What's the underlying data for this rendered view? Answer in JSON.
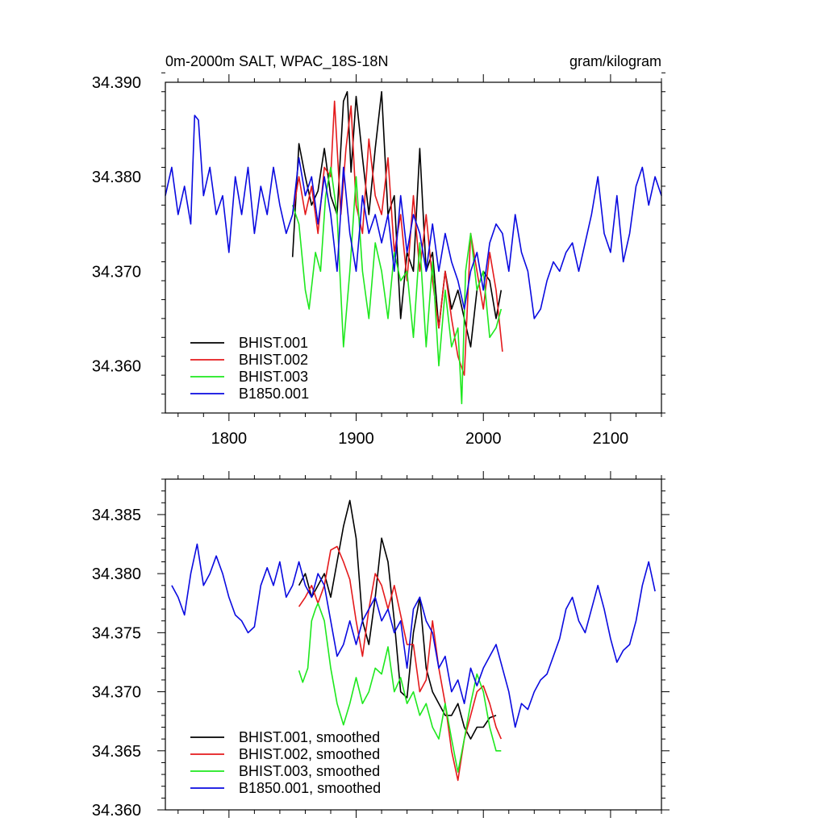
{
  "chart_data": [
    {
      "type": "line",
      "title": "0m-2000m SALT, WPAC_18S-18N",
      "units": "gram/kilogram",
      "xlim": [
        1750,
        2140
      ],
      "ylim": [
        34.355,
        34.39
      ],
      "xticks": [
        1800,
        1900,
        2000,
        2100
      ],
      "xtick_labels": [
        "1800",
        "1900",
        "2000",
        "2100"
      ],
      "yticks": [
        34.36,
        34.37,
        34.38,
        34.39
      ],
      "ytick_labels": [
        "34.360",
        "34.370",
        "34.380",
        "34.390"
      ],
      "legend": [
        "BHIST.001",
        "BHIST.002",
        "BHIST.003",
        "B1850.001"
      ],
      "legend_position": "bottom-left",
      "series": [
        {
          "name": "BHIST.001",
          "color": "#000000",
          "x": [
            1850,
            1855,
            1860,
            1865,
            1870,
            1875,
            1880,
            1885,
            1890,
            1893,
            1896,
            1900,
            1905,
            1910,
            1915,
            1920,
            1925,
            1930,
            1935,
            1940,
            1945,
            1950,
            1955,
            1960,
            1965,
            1970,
            1975,
            1980,
            1985,
            1990,
            1995,
            2000,
            2005,
            2010,
            2014
          ],
          "y": [
            34.3715,
            34.3835,
            34.38,
            34.377,
            34.3785,
            34.383,
            34.378,
            34.376,
            34.388,
            34.389,
            34.3805,
            34.3885,
            34.382,
            34.376,
            34.383,
            34.389,
            34.376,
            34.378,
            34.365,
            34.372,
            34.37,
            34.383,
            34.37,
            34.372,
            34.364,
            34.37,
            34.366,
            34.368,
            34.365,
            34.362,
            34.368,
            34.37,
            34.369,
            34.365,
            34.368
          ]
        },
        {
          "name": "BHIST.002",
          "color": "#e41a1c",
          "x": [
            1850,
            1855,
            1860,
            1865,
            1870,
            1875,
            1880,
            1883,
            1888,
            1892,
            1896,
            1900,
            1905,
            1910,
            1915,
            1920,
            1925,
            1930,
            1935,
            1940,
            1945,
            1950,
            1955,
            1960,
            1965,
            1970,
            1975,
            1980,
            1985,
            1990,
            1995,
            2000,
            2005,
            2010,
            2015
          ],
          "y": [
            34.376,
            34.38,
            34.376,
            34.379,
            34.374,
            34.381,
            34.38,
            34.388,
            34.376,
            34.383,
            34.3875,
            34.377,
            34.374,
            34.384,
            34.378,
            34.376,
            34.382,
            34.372,
            34.376,
            34.369,
            34.378,
            34.37,
            34.376,
            34.369,
            34.364,
            34.37,
            34.365,
            34.361,
            34.359,
            34.374,
            34.37,
            34.366,
            34.372,
            34.368,
            34.3615
          ]
        },
        {
          "name": "BHIST.003",
          "color": "#1ee81e",
          "x": [
            1850,
            1855,
            1860,
            1863,
            1868,
            1872,
            1876,
            1880,
            1885,
            1890,
            1895,
            1900,
            1905,
            1910,
            1915,
            1920,
            1925,
            1930,
            1935,
            1940,
            1945,
            1950,
            1955,
            1960,
            1965,
            1970,
            1975,
            1980,
            1983,
            1986,
            1990,
            1995,
            2000,
            2005,
            2010,
            2014
          ],
          "y": [
            34.377,
            34.375,
            34.368,
            34.366,
            34.372,
            34.37,
            34.378,
            34.381,
            34.376,
            34.362,
            34.37,
            34.38,
            34.37,
            34.365,
            34.373,
            34.37,
            34.365,
            34.372,
            34.369,
            34.37,
            34.363,
            34.373,
            34.362,
            34.371,
            34.36,
            34.368,
            34.362,
            34.364,
            34.356,
            34.37,
            34.374,
            34.368,
            34.37,
            34.363,
            34.364,
            34.366
          ]
        },
        {
          "name": "B1850.001",
          "color": "#0a0ae0",
          "x": [
            1750,
            1755,
            1760,
            1765,
            1770,
            1773,
            1776,
            1780,
            1785,
            1790,
            1795,
            1800,
            1805,
            1810,
            1815,
            1820,
            1825,
            1830,
            1835,
            1840,
            1845,
            1850,
            1855,
            1860,
            1865,
            1870,
            1875,
            1880,
            1885,
            1890,
            1895,
            1900,
            1905,
            1910,
            1915,
            1920,
            1925,
            1930,
            1935,
            1940,
            1945,
            1950,
            1955,
            1960,
            1965,
            1970,
            1975,
            1980,
            1985,
            1990,
            1995,
            2000,
            2005,
            2010,
            2015,
            2020,
            2025,
            2030,
            2035,
            2040,
            2045,
            2050,
            2055,
            2060,
            2065,
            2070,
            2075,
            2080,
            2085,
            2090,
            2095,
            2100,
            2105,
            2110,
            2115,
            2120,
            2125,
            2130,
            2135,
            2140
          ],
          "y": [
            34.378,
            34.381,
            34.376,
            34.379,
            34.375,
            34.3865,
            34.386,
            34.378,
            34.381,
            34.376,
            34.378,
            34.372,
            34.38,
            34.376,
            34.381,
            34.374,
            34.379,
            34.376,
            34.381,
            34.377,
            34.374,
            34.376,
            34.382,
            34.378,
            34.38,
            34.375,
            34.38,
            34.376,
            34.37,
            34.381,
            34.374,
            34.37,
            34.378,
            34.374,
            34.376,
            34.373,
            34.376,
            34.37,
            34.378,
            34.372,
            34.376,
            34.374,
            34.37,
            34.375,
            34.37,
            34.374,
            34.371,
            34.369,
            34.366,
            34.37,
            34.372,
            34.368,
            34.373,
            34.375,
            34.374,
            34.37,
            34.376,
            34.372,
            34.37,
            34.365,
            34.366,
            34.369,
            34.371,
            34.37,
            34.372,
            34.373,
            34.37,
            34.373,
            34.376,
            34.38,
            34.374,
            34.372,
            34.378,
            34.371,
            34.374,
            34.379,
            34.381,
            34.377,
            34.38,
            34.378
          ]
        }
      ]
    },
    {
      "type": "line",
      "title": "",
      "xlim": [
        1750,
        2140
      ],
      "ylim": [
        34.36,
        34.388
      ],
      "xticks": [
        1800,
        1900,
        2000,
        2100
      ],
      "xtick_labels": [],
      "yticks": [
        34.36,
        34.365,
        34.37,
        34.375,
        34.38,
        34.385
      ],
      "ytick_labels": [
        "34.360",
        "34.365",
        "34.370",
        "34.375",
        "34.380",
        "34.385"
      ],
      "legend": [
        "BHIST.001, smoothed",
        "BHIST.002, smoothed",
        "BHIST.003, smoothed",
        "B1850.001, smoothed"
      ],
      "legend_position": "bottom-left",
      "series": [
        {
          "name": "BHIST.001, smoothed",
          "color": "#000000",
          "x": [
            1855,
            1860,
            1865,
            1870,
            1875,
            1880,
            1885,
            1890,
            1895,
            1900,
            1905,
            1910,
            1915,
            1920,
            1925,
            1930,
            1935,
            1940,
            1945,
            1950,
            1955,
            1960,
            1965,
            1970,
            1975,
            1980,
            1985,
            1990,
            1995,
            2000,
            2005,
            2010
          ],
          "y": [
            34.379,
            34.38,
            34.378,
            34.379,
            34.38,
            34.378,
            34.381,
            34.384,
            34.3862,
            34.383,
            34.376,
            34.374,
            34.378,
            34.383,
            34.381,
            34.376,
            34.37,
            34.3695,
            34.375,
            34.378,
            34.372,
            34.37,
            34.369,
            34.368,
            34.368,
            34.369,
            34.367,
            34.366,
            34.367,
            34.367,
            34.3678,
            34.368
          ]
        },
        {
          "name": "BHIST.002, smoothed",
          "color": "#e41a1c",
          "x": [
            1855,
            1860,
            1865,
            1870,
            1875,
            1880,
            1885,
            1890,
            1895,
            1900,
            1905,
            1910,
            1915,
            1920,
            1925,
            1930,
            1935,
            1940,
            1945,
            1950,
            1955,
            1960,
            1965,
            1970,
            1975,
            1980,
            1985,
            1990,
            1995,
            2000,
            2005,
            2010,
            2014
          ],
          "y": [
            34.3772,
            34.378,
            34.379,
            34.3775,
            34.379,
            34.382,
            34.3823,
            34.381,
            34.3795,
            34.376,
            34.373,
            34.377,
            34.38,
            34.379,
            34.377,
            34.379,
            34.3765,
            34.374,
            34.374,
            34.37,
            34.371,
            34.376,
            34.372,
            34.369,
            34.365,
            34.3625,
            34.366,
            34.368,
            34.37,
            34.3705,
            34.369,
            34.367,
            34.366
          ]
        },
        {
          "name": "BHIST.003, smoothed",
          "color": "#1ee81e",
          "x": [
            1855,
            1858,
            1862,
            1865,
            1868,
            1870,
            1875,
            1880,
            1885,
            1890,
            1895,
            1900,
            1905,
            1910,
            1915,
            1920,
            1925,
            1930,
            1935,
            1940,
            1945,
            1950,
            1955,
            1960,
            1965,
            1970,
            1975,
            1980,
            1985,
            1990,
            1995,
            2000,
            2005,
            2010,
            2014
          ],
          "y": [
            34.3718,
            34.3708,
            34.372,
            34.376,
            34.377,
            34.3775,
            34.376,
            34.372,
            34.369,
            34.3672,
            34.369,
            34.3712,
            34.369,
            34.37,
            34.372,
            34.3715,
            34.3738,
            34.37,
            34.3712,
            34.369,
            34.37,
            34.368,
            34.369,
            34.367,
            34.366,
            34.369,
            34.366,
            34.3632,
            34.366,
            34.369,
            34.3715,
            34.37,
            34.367,
            34.365,
            34.365
          ]
        },
        {
          "name": "B1850.001, smoothed",
          "color": "#0a0ae0",
          "x": [
            1755,
            1760,
            1765,
            1770,
            1775,
            1780,
            1785,
            1790,
            1795,
            1800,
            1805,
            1810,
            1815,
            1820,
            1825,
            1830,
            1835,
            1840,
            1845,
            1850,
            1855,
            1860,
            1865,
            1870,
            1875,
            1880,
            1885,
            1890,
            1895,
            1900,
            1905,
            1910,
            1915,
            1920,
            1925,
            1930,
            1935,
            1940,
            1945,
            1950,
            1955,
            1960,
            1965,
            1970,
            1975,
            1980,
            1985,
            1990,
            1995,
            2000,
            2005,
            2010,
            2015,
            2020,
            2025,
            2030,
            2035,
            2040,
            2045,
            2050,
            2055,
            2060,
            2065,
            2070,
            2075,
            2080,
            2085,
            2090,
            2095,
            2100,
            2105,
            2110,
            2115,
            2120,
            2125,
            2130,
            2135
          ],
          "y": [
            34.379,
            34.378,
            34.3765,
            34.38,
            34.3825,
            34.379,
            34.38,
            34.3815,
            34.38,
            34.378,
            34.3765,
            34.376,
            34.375,
            34.3755,
            34.379,
            34.3805,
            34.379,
            34.381,
            34.378,
            34.379,
            34.381,
            34.379,
            34.378,
            34.38,
            34.379,
            34.376,
            34.373,
            34.374,
            34.376,
            34.374,
            34.376,
            34.377,
            34.378,
            34.376,
            34.377,
            34.375,
            34.376,
            34.372,
            34.377,
            34.378,
            34.376,
            34.375,
            34.372,
            34.373,
            34.37,
            34.371,
            34.369,
            34.372,
            34.3705,
            34.372,
            34.373,
            34.374,
            34.372,
            34.37,
            34.367,
            34.369,
            34.3685,
            34.37,
            34.371,
            34.3715,
            34.373,
            34.3745,
            34.377,
            34.378,
            34.376,
            34.375,
            34.377,
            34.379,
            34.377,
            34.3745,
            34.3725,
            34.3735,
            34.374,
            34.376,
            34.379,
            34.381,
            34.3785
          ]
        }
      ]
    }
  ]
}
